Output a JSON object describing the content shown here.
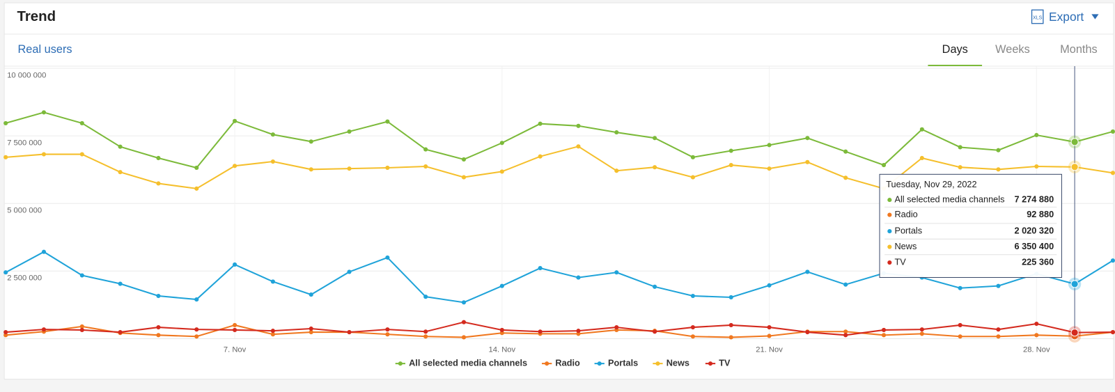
{
  "header": {
    "title": "Trend",
    "export": "Export",
    "metric": "Real users",
    "tabs": [
      "Days",
      "Weeks",
      "Months"
    ],
    "active_tab": "Days"
  },
  "chart_data": {
    "type": "line",
    "x": [
      1,
      2,
      3,
      4,
      5,
      6,
      7,
      8,
      9,
      10,
      11,
      12,
      13,
      14,
      15,
      16,
      17,
      18,
      19,
      20,
      21,
      22,
      23,
      24,
      25,
      26,
      27,
      28,
      29,
      30
    ],
    "xlim": [
      1,
      30
    ],
    "xticks": [
      {
        "value": 7,
        "label": "7. Nov"
      },
      {
        "value": 14,
        "label": "14. Nov"
      },
      {
        "value": 21,
        "label": "21. Nov"
      },
      {
        "value": 28,
        "label": "28. Nov"
      }
    ],
    "ylim": [
      0,
      10000000
    ],
    "yticks": [
      {
        "value": 2500000,
        "label": "2 500 000"
      },
      {
        "value": 5000000,
        "label": "5 000 000"
      },
      {
        "value": 7500000,
        "label": "7 500 000"
      },
      {
        "value": 10000000,
        "label": "10 000 000"
      }
    ],
    "grid": true,
    "tooltip_title": "Tuesday, Nov 29, 2022",
    "series": [
      {
        "name": "All selected media channels",
        "color": "#7cba3a",
        "values": [
          7970000,
          8370000,
          7970000,
          7100000,
          6680000,
          6320000,
          8050000,
          7550000,
          7290000,
          7660000,
          8030000,
          7000000,
          6630000,
          7240000,
          7950000,
          7870000,
          7630000,
          7420000,
          6710000,
          6950000,
          7160000,
          7420000,
          6920000,
          6420000,
          7740000,
          7080000,
          6970000,
          7530000,
          7274880,
          7660000
        ],
        "value_labels": [
          null,
          null,
          null,
          null,
          null,
          null,
          null,
          null,
          null,
          null,
          null,
          null,
          null,
          null,
          null,
          null,
          null,
          null,
          null,
          null,
          null,
          null,
          null,
          null,
          null,
          null,
          null,
          null,
          "7 274 880",
          null
        ]
      },
      {
        "name": "Radio",
        "color": "#f07820",
        "values": [
          130000,
          260000,
          450000,
          210000,
          130000,
          80000,
          500000,
          160000,
          240000,
          240000,
          160000,
          80000,
          50000,
          210000,
          180000,
          180000,
          320000,
          290000,
          80000,
          50000,
          100000,
          260000,
          260000,
          130000,
          180000,
          80000,
          80000,
          130000,
          92880,
          240000
        ],
        "value_labels": [
          null,
          null,
          null,
          null,
          null,
          null,
          null,
          null,
          null,
          null,
          null,
          null,
          null,
          null,
          null,
          null,
          null,
          null,
          null,
          null,
          null,
          null,
          null,
          null,
          null,
          null,
          null,
          null,
          "92 880",
          null
        ]
      },
      {
        "name": "Portals",
        "color": "#1fa3d9",
        "values": [
          2450000,
          3210000,
          2340000,
          2030000,
          1580000,
          1450000,
          2740000,
          2110000,
          1630000,
          2470000,
          3000000,
          1550000,
          1340000,
          1950000,
          2610000,
          2260000,
          2450000,
          1920000,
          1580000,
          1530000,
          1970000,
          2470000,
          2000000,
          2420000,
          2260000,
          1870000,
          1950000,
          2400000,
          2020320,
          2890000
        ],
        "value_labels": [
          null,
          null,
          null,
          null,
          null,
          null,
          null,
          null,
          null,
          null,
          null,
          null,
          null,
          null,
          null,
          null,
          null,
          null,
          null,
          null,
          null,
          null,
          null,
          null,
          null,
          null,
          null,
          null,
          "2 020 320",
          null
        ]
      },
      {
        "name": "News",
        "color": "#f5bf2c",
        "values": [
          6710000,
          6820000,
          6820000,
          6160000,
          5740000,
          5550000,
          6390000,
          6550000,
          6260000,
          6290000,
          6320000,
          6370000,
          5970000,
          6180000,
          6740000,
          7110000,
          6210000,
          6340000,
          5970000,
          6420000,
          6290000,
          6530000,
          5950000,
          5550000,
          6680000,
          6340000,
          6260000,
          6370000,
          6350400,
          6130000
        ],
        "value_labels": [
          null,
          null,
          null,
          null,
          null,
          null,
          null,
          null,
          null,
          null,
          null,
          null,
          null,
          null,
          null,
          null,
          null,
          null,
          null,
          null,
          null,
          null,
          null,
          null,
          null,
          null,
          null,
          null,
          "6 350 400",
          null
        ]
      },
      {
        "name": "TV",
        "color": "#d42a1e",
        "values": [
          240000,
          340000,
          320000,
          240000,
          420000,
          340000,
          320000,
          290000,
          370000,
          240000,
          340000,
          260000,
          610000,
          320000,
          260000,
          290000,
          420000,
          260000,
          420000,
          500000,
          420000,
          240000,
          130000,
          320000,
          340000,
          500000,
          340000,
          550000,
          225360,
          240000
        ],
        "value_labels": [
          null,
          null,
          null,
          null,
          null,
          null,
          null,
          null,
          null,
          null,
          null,
          null,
          null,
          null,
          null,
          null,
          null,
          null,
          null,
          null,
          null,
          null,
          null,
          null,
          null,
          null,
          null,
          null,
          "225 360",
          null
        ]
      }
    ]
  }
}
